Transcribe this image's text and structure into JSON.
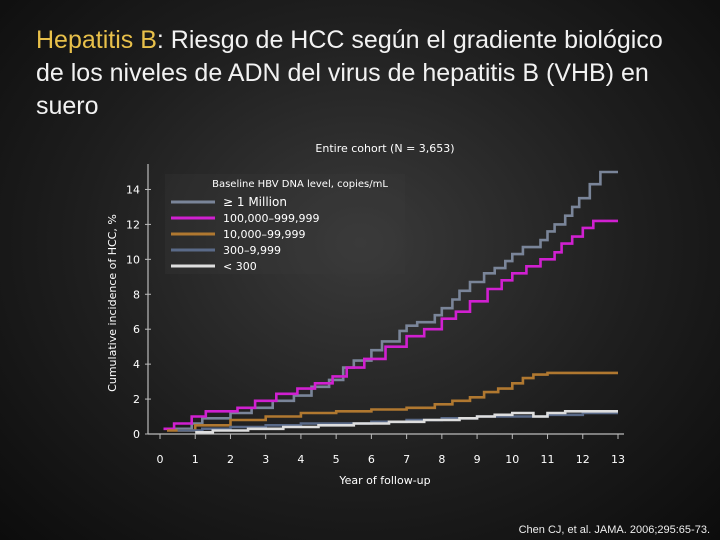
{
  "slide": {
    "title_lead": "Hepatitis B",
    "title_rest": ": Riesgo de HCC según el gradiente biológico de los niveles de ADN del virus de hepatitis B (VHB) en suero",
    "citation": "Chen CJ, et al. JAMA. 2006;295:65-73."
  },
  "chart_data": {
    "type": "line",
    "title": "Entire cohort (N = 3,653)",
    "xlabel": "Year of follow-up",
    "ylabel": "Cumulative incidence of HCC, %",
    "xlim": [
      0,
      13
    ],
    "ylim": [
      0,
      15
    ],
    "x_ticks": [
      "0",
      "1",
      "2",
      "3",
      "4",
      "5",
      "6",
      "7",
      "8",
      "9",
      "10",
      "11",
      "12",
      "13"
    ],
    "y_ticks": [
      "0",
      "2",
      "4",
      "6",
      "8",
      "10",
      "12",
      "14"
    ],
    "legend": {
      "title": "Baseline HBV DNA level, copies/mL",
      "placement": "top-left",
      "entries": [
        "≥ 1 Million",
        "100,000–999,999",
        "10,000–99,999",
        "300–9,999",
        "< 300"
      ]
    },
    "series": [
      {
        "name": "≥ 1 Million",
        "color": "#7a8599",
        "x": [
          0.3,
          0.9,
          1.2,
          2.0,
          2.6,
          3.2,
          3.8,
          4.3,
          4.8,
          5.2,
          5.5,
          6.0,
          6.3,
          6.8,
          7.0,
          7.3,
          7.8,
          8.0,
          8.3,
          8.5,
          8.8,
          9.2,
          9.5,
          9.8,
          10.0,
          10.3,
          10.8,
          11.0,
          11.2,
          11.5,
          11.7,
          11.9,
          12.2,
          12.5,
          13.0
        ],
        "y": [
          0.3,
          0.6,
          0.9,
          1.2,
          1.5,
          1.9,
          2.2,
          2.7,
          3.1,
          3.8,
          4.2,
          4.8,
          5.3,
          5.9,
          6.2,
          6.4,
          6.8,
          7.2,
          7.7,
          8.2,
          8.7,
          9.2,
          9.5,
          9.9,
          10.3,
          10.7,
          11.1,
          11.6,
          12.0,
          12.5,
          13.0,
          13.5,
          14.3,
          15.0,
          15.0
        ]
      },
      {
        "name": "100,000–999,999",
        "color": "#d020d0",
        "x": [
          0.1,
          0.4,
          0.9,
          1.3,
          2.2,
          2.7,
          3.3,
          3.9,
          4.4,
          4.9,
          5.3,
          5.8,
          6.4,
          7.0,
          7.5,
          8.0,
          8.4,
          8.8,
          9.3,
          9.7,
          10.0,
          10.4,
          10.8,
          11.2,
          11.4,
          11.7,
          12.0,
          12.3,
          12.6,
          13.0
        ],
        "y": [
          0.3,
          0.6,
          1.0,
          1.3,
          1.5,
          1.9,
          2.3,
          2.6,
          2.9,
          3.3,
          3.8,
          4.3,
          5.0,
          5.6,
          6.0,
          6.6,
          7.0,
          7.6,
          8.3,
          8.8,
          9.2,
          9.6,
          10.0,
          10.4,
          10.9,
          11.3,
          11.8,
          12.2,
          12.2,
          12.2
        ]
      },
      {
        "name": "10,000–99,999",
        "color": "#b07830",
        "x": [
          0.2,
          1.0,
          2.0,
          3.0,
          4.0,
          5.0,
          6.0,
          7.0,
          7.8,
          8.3,
          8.8,
          9.2,
          9.6,
          10.0,
          10.3,
          10.6,
          11.0,
          12.0,
          13.0
        ],
        "y": [
          0.2,
          0.5,
          0.8,
          1.0,
          1.2,
          1.3,
          1.4,
          1.5,
          1.7,
          1.9,
          2.1,
          2.4,
          2.6,
          2.9,
          3.2,
          3.4,
          3.5,
          3.5,
          3.5
        ]
      },
      {
        "name": "300–9,999",
        "color": "#5a6a88",
        "x": [
          0.5,
          1.2,
          2.0,
          3.0,
          4.0,
          5.0,
          6.0,
          7.0,
          8.0,
          9.0,
          10.0,
          11.0,
          11.5,
          12.0,
          13.0
        ],
        "y": [
          0.2,
          0.3,
          0.4,
          0.5,
          0.6,
          0.6,
          0.7,
          0.8,
          0.9,
          1.0,
          1.0,
          1.1,
          1.1,
          1.2,
          1.2
        ]
      },
      {
        "name": "< 300",
        "color": "#dedede",
        "x": [
          1.0,
          1.5,
          2.5,
          3.5,
          4.5,
          5.5,
          6.5,
          7.5,
          8.5,
          9.0,
          9.5,
          10.0,
          10.6,
          11.0,
          11.5,
          12.0,
          13.0
        ],
        "y": [
          0.1,
          0.2,
          0.3,
          0.4,
          0.5,
          0.6,
          0.7,
          0.8,
          0.9,
          1.0,
          1.1,
          1.2,
          1.0,
          1.2,
          1.3,
          1.3,
          1.3
        ]
      }
    ]
  }
}
